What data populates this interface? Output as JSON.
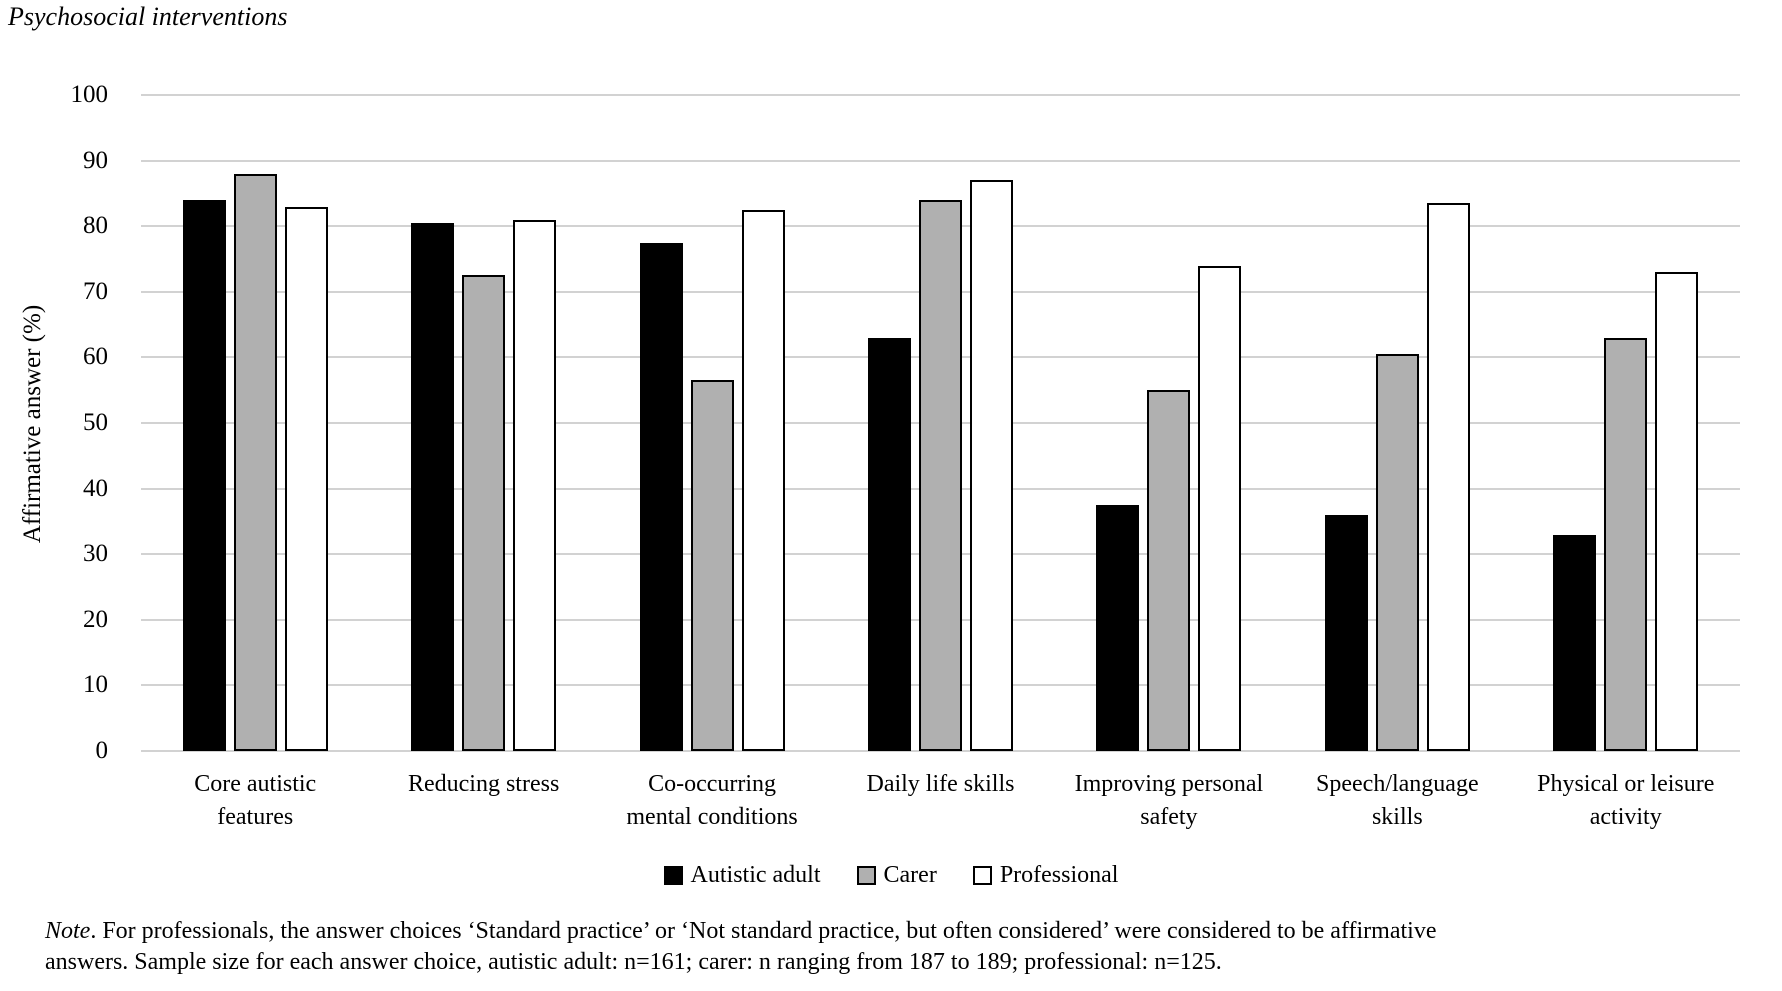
{
  "title": "Psychosocial interventions",
  "chart_data": {
    "type": "bar",
    "title": "Psychosocial interventions",
    "xlabel": "",
    "ylabel": "Affirmative answer (%)",
    "ylim": [
      0,
      100
    ],
    "yticks": [
      0,
      10,
      20,
      30,
      40,
      50,
      60,
      70,
      80,
      90,
      100
    ],
    "grid": true,
    "gridline_color": "#d2d2d2",
    "bar_border_color": "#000000",
    "legend_position": "bottom",
    "categories": [
      "Core autistic\nfeatures",
      "Reducing stress",
      "Co-occurring\nmental conditions",
      "Daily life skills",
      "Improving personal\nsafety",
      "Speech/language\nskills",
      "Physical or leisure\nactivity"
    ],
    "series": [
      {
        "name": "Autistic adult",
        "color": "#000000",
        "values": [
          84,
          80.5,
          77.5,
          63,
          37.5,
          36,
          33
        ]
      },
      {
        "name": "Carer",
        "color": "#b0b0b0",
        "values": [
          88,
          72.5,
          56.5,
          84,
          55,
          60.5,
          63
        ]
      },
      {
        "name": "Professional",
        "color": "#ffffff",
        "values": [
          83,
          81,
          82.5,
          87,
          74,
          83.5,
          73
        ]
      }
    ]
  },
  "note": {
    "prefix": "Note",
    "line1": ". For professionals, the answer choices ‘Standard practice’ or ‘Not standard practice, but often considered’ were considered to be affirmative",
    "line2": "answers. Sample size for each answer choice, autistic adult: n=161; carer: n ranging from 187 to 189; professional: n=125."
  }
}
